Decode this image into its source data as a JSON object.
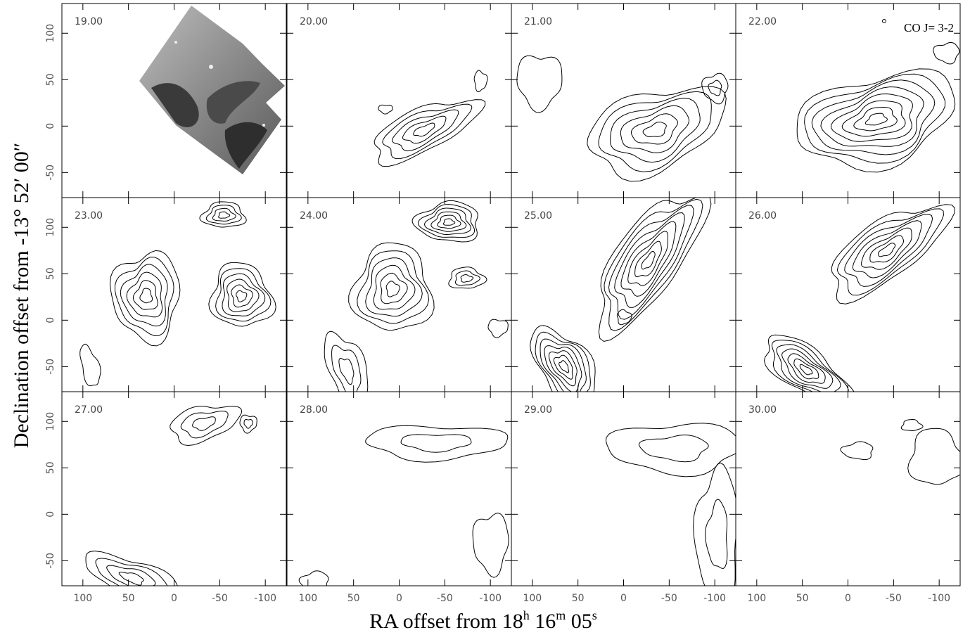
{
  "chart_data": {
    "type": "contour",
    "panels": [
      "19.00",
      "20.00",
      "21.00",
      "22.00",
      "23.00",
      "24.00",
      "25.00",
      "26.00",
      "27.00",
      "28.00",
      "29.00",
      "30.00"
    ],
    "annotation": "CO  J= 3-2",
    "x_label": [
      "RA offset from 18",
      "h",
      " 16",
      "m",
      " 05",
      "s"
    ],
    "y_label": "Declination offset from  -13° 52′ 00″",
    "xlim": [
      123,
      -123
    ],
    "xticks": [
      100,
      50,
      0,
      -50,
      -100
    ],
    "ylim": [
      -77,
      132
    ],
    "yticks": [
      -50,
      0,
      50,
      100
    ],
    "color": "#000000"
  }
}
